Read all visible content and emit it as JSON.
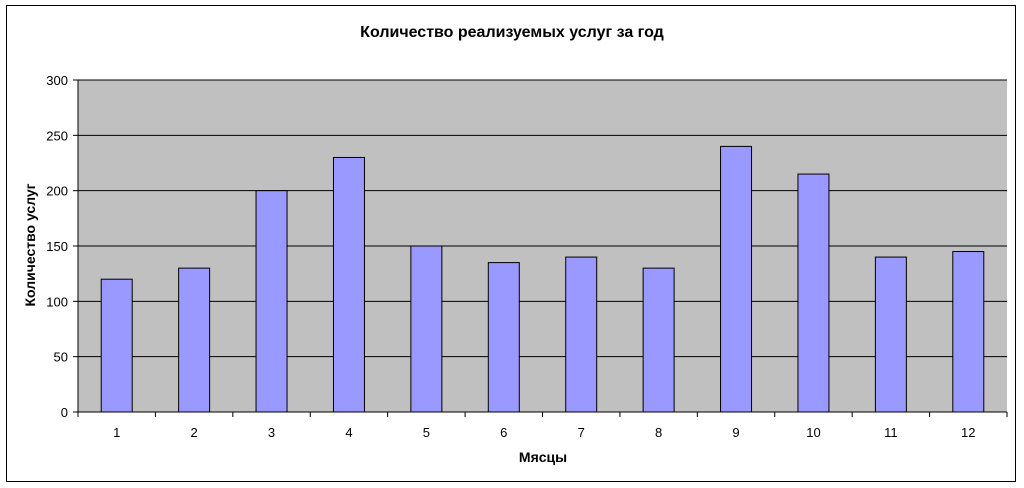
{
  "chart_data": {
    "type": "bar",
    "title": "Количество реализуемых услуг за год",
    "xlabel": "Мясцы",
    "ylabel": "Количество услуг",
    "categories": [
      "1",
      "2",
      "3",
      "4",
      "5",
      "6",
      "7",
      "8",
      "9",
      "10",
      "11",
      "12"
    ],
    "values": [
      120,
      130,
      200,
      230,
      150,
      135,
      140,
      130,
      240,
      215,
      140,
      145
    ],
    "ylim": [
      0,
      300
    ],
    "yticks": [
      0,
      50,
      100,
      150,
      200,
      250,
      300
    ],
    "grid": true,
    "legend": "none",
    "colors": {
      "bar_fill": "#9999ff",
      "bar_stroke": "#000000",
      "plot_background": "#c0c0c0",
      "gridline": "#000000"
    }
  }
}
